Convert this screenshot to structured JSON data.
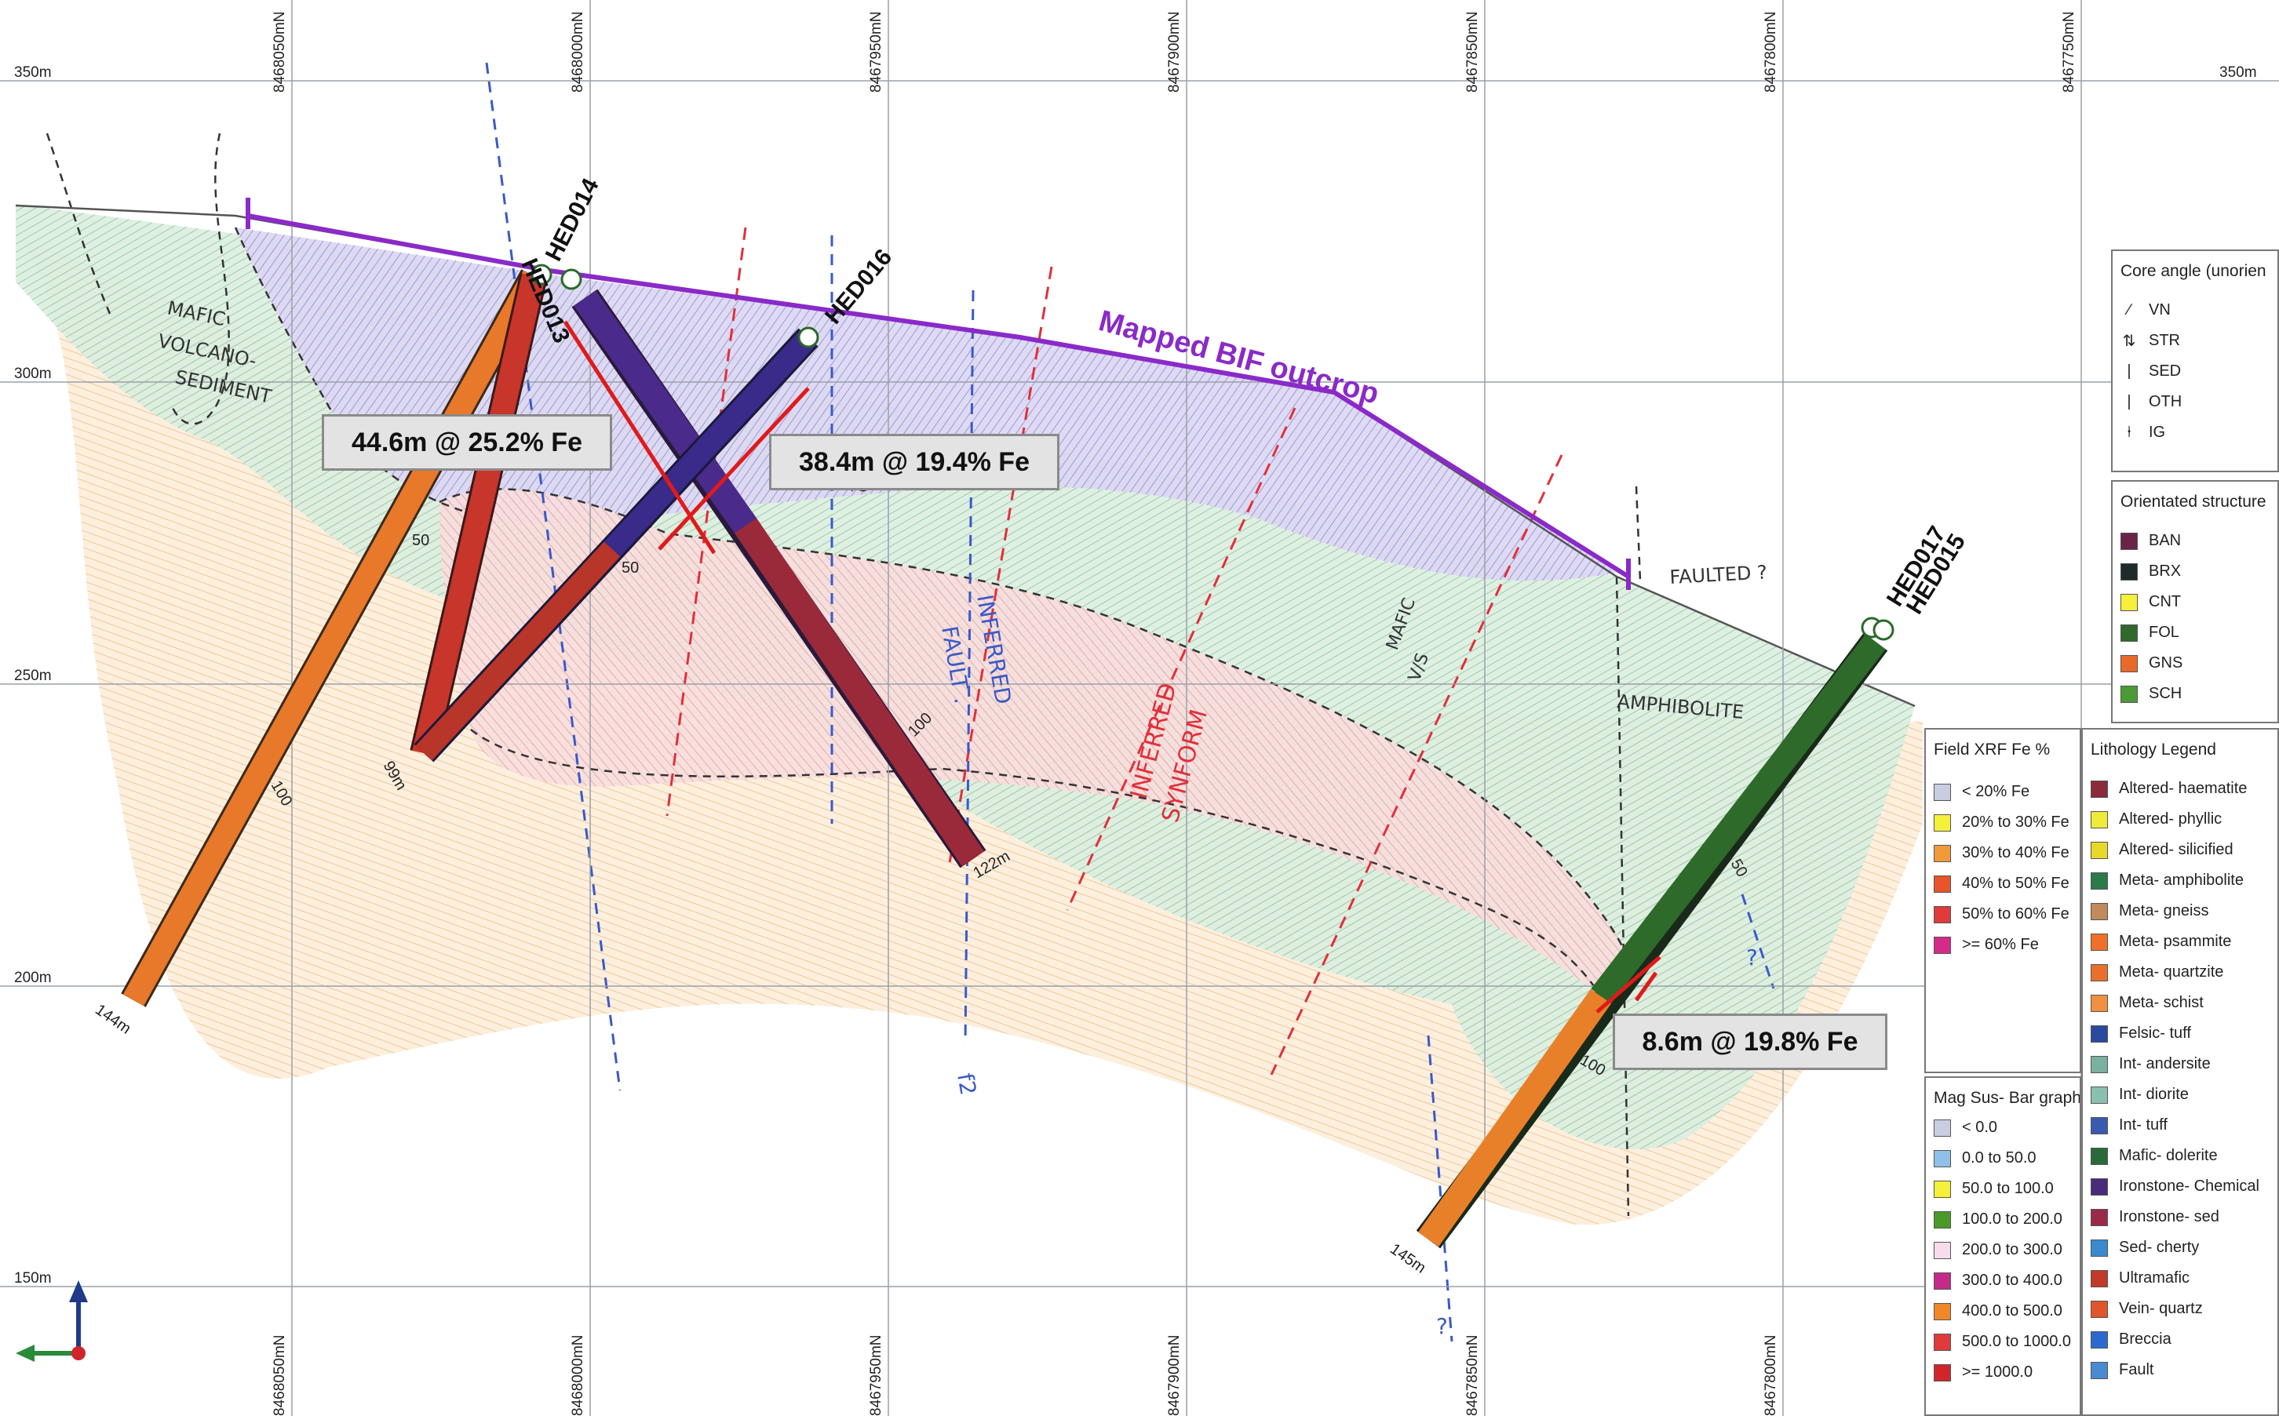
{
  "grid": {
    "northings_top": [
      "8468050mN",
      "8468000mN",
      "8467950mN",
      "8467900mN",
      "8467850mN",
      "8467800mN",
      "8467750mN"
    ],
    "northings_bottom": [
      "8468050mN",
      "8468000mN",
      "8467950mN",
      "8467900mN",
      "8467850mN",
      "8467800mN"
    ],
    "elevations": [
      "350m",
      "300m",
      "250m",
      "200m",
      "150m"
    ],
    "elevation_right": "350m"
  },
  "holes": {
    "hed013_label": "HED013",
    "hed014_label": "HED014",
    "hed016_label": "HED016",
    "hed017_label": "HED017",
    "hed015_label": "HED015",
    "depth_144": "144m",
    "depth_99": "99m",
    "depth_122": "122m",
    "depth_145": "145m",
    "tick_50_a": "50",
    "tick_100_a": "100",
    "tick_50_b": "50",
    "tick_100_b": "100",
    "tick_50_c": "50",
    "tick_100_c": "100"
  },
  "intercepts": {
    "i1": "44.6m @ 25.2% Fe",
    "i2": "38.4m @ 19.4% Fe",
    "i3": "8.6m @ 19.8% Fe"
  },
  "annotations": {
    "outcrop": "Mapped BIF outcrop",
    "mafic_1": "MAFIC",
    "mafic_2": "VOLCANO-",
    "mafic_3": "SEDIMENT",
    "faulted": "FAULTED ?",
    "amphibolite": "AMPHIBOLITE",
    "inferred_synform_1": "INFERRED",
    "inferred_synform_2": "SYNFORM",
    "inferred_fault_1": "INFERRED",
    "inferred_fault_2": "FAULT .",
    "mafic_vis_1": "MAFIC",
    "mafic_vis_2": "V/S",
    "vis_small": "V/S",
    "f2": "f2",
    "q1": "?",
    "q2": "?"
  },
  "legend_core": {
    "title": "Core angle (unorien",
    "items": [
      {
        "sym": "∕",
        "label": "VN"
      },
      {
        "sym": "⇅",
        "label": "STR"
      },
      {
        "sym": "|",
        "label": "SED"
      },
      {
        "sym": "|",
        "label": "OTH"
      },
      {
        "sym": "⍿",
        "label": "IG"
      }
    ]
  },
  "legend_structure": {
    "title": "Orientated structure",
    "items": [
      {
        "color": "#6b2346",
        "label": "BAN"
      },
      {
        "color": "#1f2a2a",
        "label": "BRX"
      },
      {
        "color": "#f7f03a",
        "label": "CNT"
      },
      {
        "color": "#2f6a2a",
        "label": "FOL"
      },
      {
        "color": "#e86a2a",
        "label": "GNS"
      },
      {
        "color": "#4c9a35",
        "label": "SCH"
      }
    ]
  },
  "legend_xrf": {
    "title": "Field XRF Fe %",
    "items": [
      {
        "color": "#c9cde0",
        "label": "< 20% Fe"
      },
      {
        "color": "#f5f03a",
        "label": "20% to 30% Fe"
      },
      {
        "color": "#f09a3a",
        "label": "30% to 40% Fe"
      },
      {
        "color": "#e8552a",
        "label": "40% to 50% Fe"
      },
      {
        "color": "#e03a3a",
        "label": "50% to 60% Fe"
      },
      {
        "color": "#d42a8a",
        "label": ">= 60% Fe"
      }
    ]
  },
  "legend_mag": {
    "title": "Mag Sus- Bar graph",
    "items": [
      {
        "color": "#c9cde0",
        "label": "< 0.0"
      },
      {
        "color": "#8fc0ea",
        "label": "0.0 to 50.0"
      },
      {
        "color": "#f5f03a",
        "label": "50.0 to 100.0"
      },
      {
        "color": "#4a9a2a",
        "label": "100.0 to 200.0"
      },
      {
        "color": "#f7dcee",
        "label": "200.0 to 300.0"
      },
      {
        "color": "#c42a8a",
        "label": "300.0 to 400.0"
      },
      {
        "color": "#f0882a",
        "label": "400.0 to 500.0"
      },
      {
        "color": "#e03a3a",
        "label": "500.0 to 1000.0"
      },
      {
        "color": "#d0252a",
        "label": ">= 1000.0"
      }
    ]
  },
  "legend_lith": {
    "title": "Lithology Legend",
    "items": [
      {
        "color": "#8a2a3a",
        "label": "Altered- haematite"
      },
      {
        "color": "#f0ea3a",
        "label": "Altered- phyllic"
      },
      {
        "color": "#e8d82a",
        "label": "Altered- silicified"
      },
      {
        "color": "#2a7a4a",
        "label": "Meta- amphibolite"
      },
      {
        "color": "#c08a5a",
        "label": "Meta- gneiss"
      },
      {
        "color": "#f0702a",
        "label": "Meta- psammite"
      },
      {
        "color": "#e8702a",
        "label": "Meta- quartzite"
      },
      {
        "color": "#f09040",
        "label": "Meta- schist"
      },
      {
        "color": "#2a4aa0",
        "label": "Felsic- tuff"
      },
      {
        "color": "#7ab0a0",
        "label": "Int- andersite"
      },
      {
        "color": "#8ac0b0",
        "label": "Int- diorite"
      },
      {
        "color": "#3a5ab0",
        "label": "Int- tuff"
      },
      {
        "color": "#2a6a3a",
        "label": "Mafic- dolerite"
      },
      {
        "color": "#4a2a7a",
        "label": "Ironstone- Chemical"
      },
      {
        "color": "#9a2a4a",
        "label": "Ironstone- sed"
      },
      {
        "color": "#3a8ad0",
        "label": "Sed- cherty"
      },
      {
        "color": "#c23a2a",
        "label": "Ultramafic"
      },
      {
        "color": "#e0552a",
        "label": "Vein- quartz"
      },
      {
        "color": "#2a6ad0",
        "label": "Breccia"
      },
      {
        "color": "#4a8ad0",
        "label": "Fault"
      }
    ]
  }
}
